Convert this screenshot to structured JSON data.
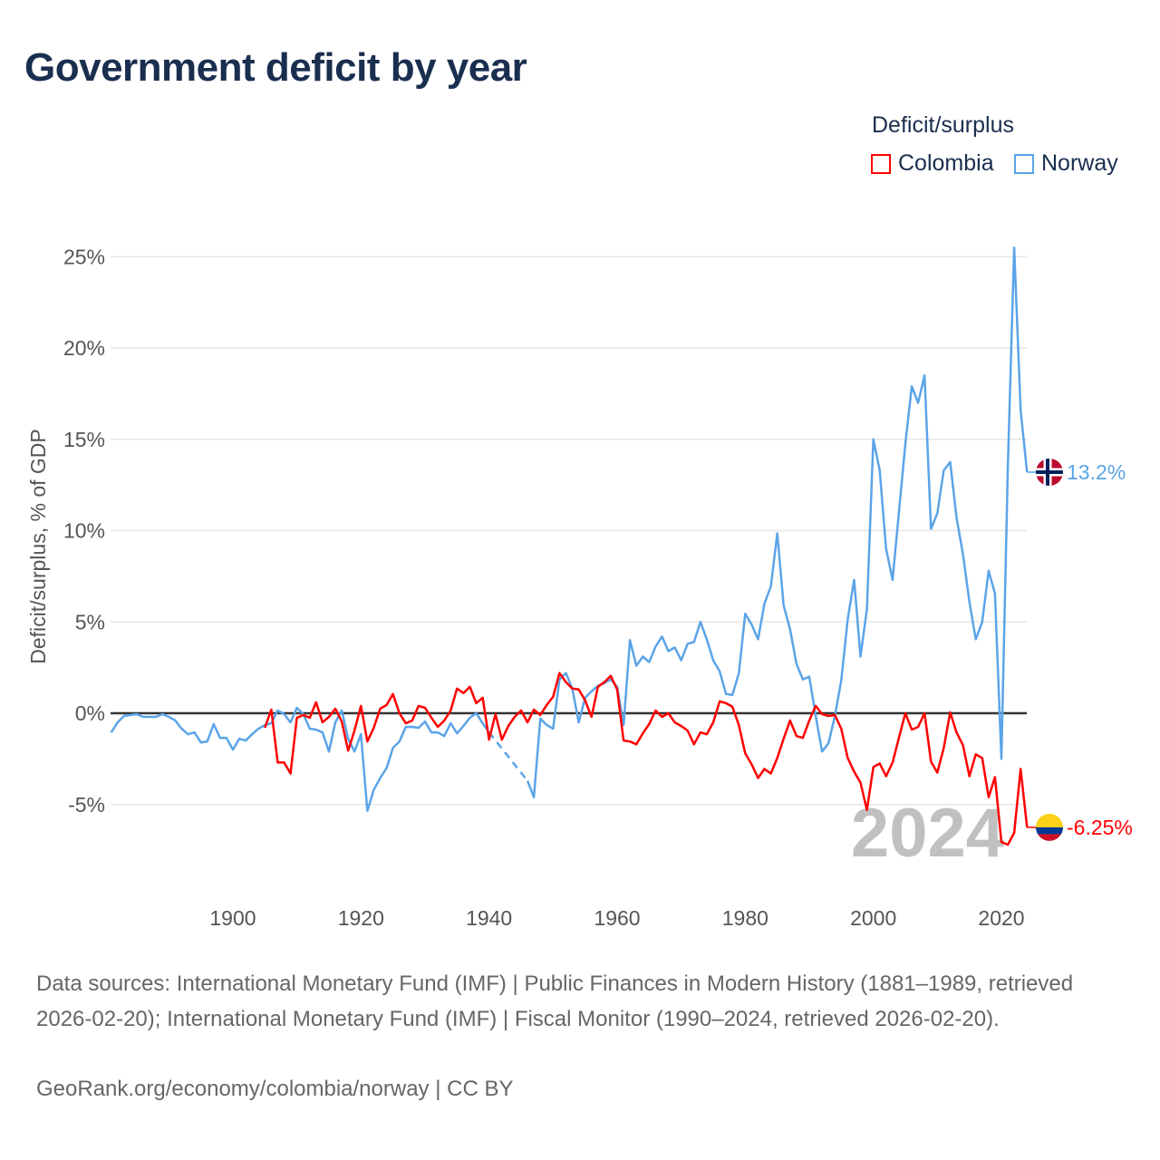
{
  "title": "Government deficit by year",
  "legend": {
    "title": "Deficit/surplus",
    "items": [
      {
        "label": "Colombia",
        "color": "#ff0000"
      },
      {
        "label": "Norway",
        "color": "#5ba4e8"
      }
    ]
  },
  "footer": {
    "sources": "Data sources: International Monetary Fund (IMF) | Public Finances in Modern History (1881–1989, retrieved 2026-02-20); International Monetary Fund (IMF) | Fiscal Monitor (1990–2024, retrieved 2026-02-20).",
    "credit": "GeoRank.org/economy/colombia/norway | CC BY"
  },
  "chart_data": {
    "type": "line",
    "title": "Government deficit by year",
    "ylabel": "Deficit/surplus, % of GDP",
    "xlabel": "",
    "xlim": [
      1881,
      2024
    ],
    "ylim": [
      -8.5,
      26
    ],
    "grid": true,
    "legend_position": "top-right",
    "year_watermark": "2024",
    "xticks": [
      1900,
      1920,
      1940,
      1960,
      1980,
      2000,
      2020
    ],
    "yticks": [
      {
        "v": 25,
        "label": "25%"
      },
      {
        "v": 20,
        "label": "20%"
      },
      {
        "v": 15,
        "label": "15%"
      },
      {
        "v": 10,
        "label": "10%"
      },
      {
        "v": 5,
        "label": "5%"
      },
      {
        "v": 0,
        "label": "0%"
      },
      {
        "v": -5,
        "label": "-5%"
      }
    ],
    "series": [
      {
        "name": "Norway",
        "color": "#5ba4e8",
        "start_year": 1881,
        "end_label": "13.2%",
        "values": [
          -1.05,
          -0.5,
          -0.15,
          -0.1,
          -0.05,
          -0.2,
          -0.2,
          -0.2,
          -0.05,
          -0.2,
          -0.4,
          -0.85,
          -1.15,
          -1.05,
          -1.6,
          -1.55,
          -0.6,
          -1.35,
          -1.35,
          -2.0,
          -1.4,
          -1.5,
          -1.15,
          -0.85,
          -0.65,
          -0.55,
          0.15,
          -0.05,
          -0.5,
          0.3,
          -0.05,
          -0.85,
          -0.9,
          -1.05,
          -2.1,
          -0.5,
          0.15,
          -1.4,
          -2.1,
          -1.15,
          -5.35,
          -4.2,
          -3.55,
          -3.0,
          -1.9,
          -1.55,
          -0.75,
          -0.75,
          -0.8,
          -0.45,
          -1.05,
          -1.05,
          -1.25,
          -0.55,
          -1.1,
          -0.7,
          -0.25,
          0.0,
          -0.55,
          -1.05,
          null,
          null,
          null,
          null,
          null,
          -3.7,
          -4.6,
          -0.3,
          -0.65,
          -0.85,
          1.85,
          2.2,
          1.35,
          -0.5,
          0.85,
          1.2,
          1.5,
          1.65,
          1.85,
          1.45,
          -0.65,
          4.0,
          2.6,
          3.1,
          2.8,
          3.65,
          4.2,
          3.4,
          3.6,
          2.9,
          3.8,
          3.9,
          5.0,
          4.05,
          2.9,
          2.3,
          1.05,
          1.0,
          2.2,
          5.45,
          4.85,
          4.05,
          6.0,
          6.95,
          9.85,
          5.9,
          4.6,
          2.7,
          1.85,
          2.0,
          -0.15,
          -2.1,
          -1.65,
          -0.15,
          1.8,
          5.15,
          7.3,
          3.1,
          5.7,
          15.0,
          13.3,
          9.0,
          7.3,
          11.0,
          14.75,
          17.9,
          17.0,
          18.5,
          10.1,
          10.95,
          13.3,
          13.75,
          10.7,
          8.7,
          6.1,
          4.05,
          5.0,
          7.8,
          6.55,
          -2.5,
          13.5,
          25.5,
          16.6,
          13.2
        ]
      },
      {
        "name": "Colombia",
        "color": "#ff0000",
        "start_year": 1905,
        "end_label": "-6.25%",
        "values": [
          -0.8,
          0.2,
          -2.7,
          -2.7,
          -3.3,
          -0.25,
          -0.1,
          -0.25,
          0.6,
          -0.5,
          -0.2,
          0.25,
          -0.45,
          -2.05,
          -0.95,
          0.4,
          -1.55,
          -0.8,
          0.25,
          0.45,
          1.05,
          0.0,
          -0.55,
          -0.4,
          0.4,
          0.3,
          -0.25,
          -0.75,
          -0.4,
          0.15,
          1.35,
          1.1,
          1.45,
          0.55,
          0.85,
          -1.45,
          -0.05,
          -1.45,
          -0.7,
          -0.2,
          0.15,
          -0.5,
          0.2,
          -0.1,
          0.45,
          0.9,
          2.2,
          1.7,
          1.35,
          1.3,
          0.7,
          -0.2,
          1.45,
          1.7,
          2.05,
          1.3,
          -1.5,
          -1.55,
          -1.7,
          -1.1,
          -0.6,
          0.15,
          -0.2,
          0.0,
          -0.5,
          -0.7,
          -0.95,
          -1.7,
          -1.05,
          -1.15,
          -0.5,
          0.65,
          0.55,
          0.35,
          -0.65,
          -2.2,
          -2.8,
          -3.55,
          -3.05,
          -3.3,
          -2.45,
          -1.4,
          -0.4,
          -1.25,
          -1.35,
          -0.4,
          0.4,
          -0.05,
          -0.15,
          -0.1,
          -0.85,
          -2.45,
          -3.2,
          -3.8,
          -5.3,
          -2.95,
          -2.75,
          -3.45,
          -2.7,
          -1.35,
          0.0,
          -0.9,
          -0.75,
          0.0,
          -2.65,
          -3.25,
          -1.9,
          0.05,
          -1.05,
          -1.75,
          -3.45,
          -2.25,
          -2.45,
          -4.6,
          -3.5,
          -7.05,
          -7.2,
          -6.55,
          -3.05,
          -6.25
        ]
      }
    ]
  }
}
